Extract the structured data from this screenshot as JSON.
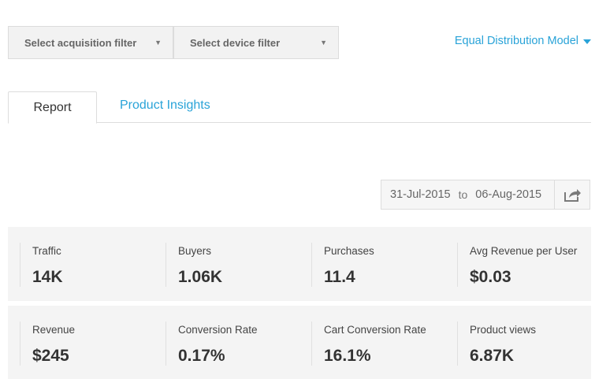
{
  "filters": {
    "acquisition": "Select acquisition filter",
    "device": "Select device filter"
  },
  "model": "Equal Distribution Model",
  "tabs": [
    {
      "label": "Report",
      "active": true
    },
    {
      "label": "Product Insights",
      "active": false
    }
  ],
  "date_range": {
    "from": "31-Jul-2015",
    "to_label": "to",
    "to": "06-Aug-2015"
  },
  "metrics": [
    [
      {
        "label": "Traffic",
        "value": "14K"
      },
      {
        "label": "Buyers",
        "value": "1.06K"
      },
      {
        "label": "Purchases",
        "value": "11.4"
      },
      {
        "label": "Avg Revenue per User",
        "value": "$0.03"
      }
    ],
    [
      {
        "label": "Revenue",
        "value": "$245"
      },
      {
        "label": "Conversion Rate",
        "value": "0.17%"
      },
      {
        "label": "Cart Conversion Rate",
        "value": "16.1%"
      },
      {
        "label": "Product views",
        "value": "6.87K"
      }
    ]
  ],
  "colors": {
    "accent": "#29a3d8",
    "panel": "#f4f4f4"
  }
}
